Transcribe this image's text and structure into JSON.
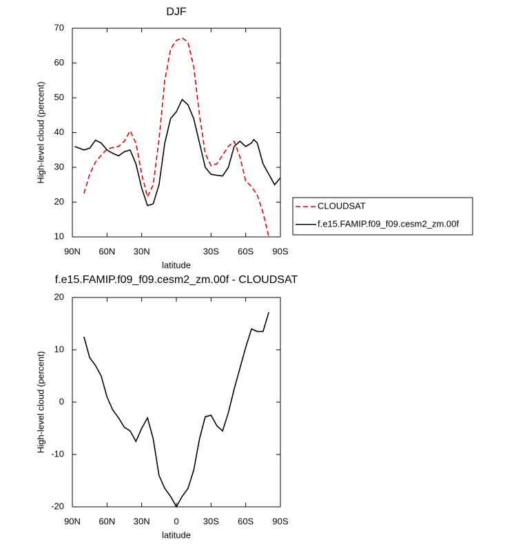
{
  "chart_data": [
    {
      "type": "line",
      "title": "DJF",
      "xlabel": "latitude",
      "ylabel": "High-level cloud (percent)",
      "xlim": [
        90,
        -90
      ],
      "ylim": [
        10,
        70
      ],
      "xticks": [
        {
          "value": 90,
          "label": "90N"
        },
        {
          "value": 60,
          "label": "60N"
        },
        {
          "value": 30,
          "label": "30N"
        },
        {
          "value": -30,
          "label": "30S"
        },
        {
          "value": -60,
          "label": "60S"
        },
        {
          "value": -90,
          "label": "90S"
        }
      ],
      "yticks": [
        10,
        20,
        30,
        40,
        50,
        60,
        70
      ],
      "legend": "right",
      "series": [
        {
          "name": "CLOUDSAT",
          "color": "#e00000",
          "line_style": "dashed",
          "x": [
            80,
            75,
            70,
            65,
            60,
            55,
            50,
            45,
            40,
            35,
            30,
            25,
            20,
            15,
            10,
            5,
            0,
            -5,
            -10,
            -15,
            -20,
            -25,
            -30,
            -35,
            -40,
            -45,
            -50,
            -55,
            -60,
            -65,
            -70,
            -75,
            -80
          ],
          "values": [
            22.5,
            28,
            31.5,
            33.5,
            35.2,
            35.7,
            36,
            37.5,
            40.5,
            37,
            28,
            21.5,
            25,
            38,
            55,
            64,
            66.5,
            67.2,
            66,
            59,
            45,
            34,
            30.5,
            31,
            33.5,
            36,
            37.5,
            33,
            26,
            24.5,
            22,
            17,
            10
          ]
        },
        {
          "name": "f.e15.FAMIP.f09_f09.cesm2_zm.00f",
          "color": "#000000",
          "line_style": "solid",
          "x": [
            88,
            80,
            75,
            70,
            65,
            60,
            55,
            50,
            45,
            40,
            35,
            30,
            25,
            20,
            15,
            10,
            5,
            0,
            -5,
            -10,
            -15,
            -20,
            -25,
            -30,
            -35,
            -40,
            -45,
            -50,
            -55,
            -60,
            -65,
            -67,
            -70,
            -75,
            -80,
            -85,
            -90
          ],
          "values": [
            36,
            35,
            35.5,
            37.8,
            37,
            35,
            34,
            33.3,
            34.5,
            35,
            31,
            24,
            19,
            19.5,
            25,
            37,
            44,
            46,
            49.5,
            48,
            44,
            37,
            30,
            28,
            27.7,
            27.5,
            30,
            36,
            37.5,
            36,
            37,
            38,
            37,
            31,
            28,
            25,
            27
          ]
        }
      ]
    },
    {
      "type": "line",
      "title": "f.e15.FAMIP.f09_f09.cesm2_zm.00f - CLOUDSAT",
      "xlabel": "latitude",
      "ylabel": "High-level cloud (percent)",
      "xlim": [
        90,
        -90
      ],
      "ylim": [
        -20,
        20
      ],
      "xticks": [
        {
          "value": 90,
          "label": "90N"
        },
        {
          "value": 60,
          "label": "60N"
        },
        {
          "value": 30,
          "label": "30N"
        },
        0,
        {
          "value": -30,
          "label": "30S"
        },
        {
          "value": -60,
          "label": "60S"
        },
        {
          "value": -90,
          "label": "90S"
        }
      ],
      "yticks": [
        -20,
        -10,
        0,
        10,
        20
      ],
      "series": [
        {
          "color": "#000000",
          "line_style": "solid",
          "x": [
            80,
            75,
            70,
            65,
            60,
            55,
            50,
            45,
            40,
            35,
            30,
            25,
            20,
            15,
            10,
            5,
            0,
            -5,
            -10,
            -15,
            -20,
            -25,
            -30,
            -35,
            -40,
            -45,
            -50,
            -55,
            -60,
            -65,
            -70,
            -75,
            -80
          ],
          "values": [
            12.5,
            8.5,
            7,
            5,
            1,
            -1.5,
            -3,
            -4.8,
            -5.5,
            -7.5,
            -5,
            -3,
            -7,
            -14,
            -16.5,
            -18,
            -20,
            -18,
            -16.5,
            -13,
            -7,
            -2.8,
            -2.5,
            -4.5,
            -5.5,
            -2,
            2.5,
            6.5,
            10.5,
            14,
            13.5,
            13.5,
            17.2
          ]
        }
      ]
    }
  ]
}
